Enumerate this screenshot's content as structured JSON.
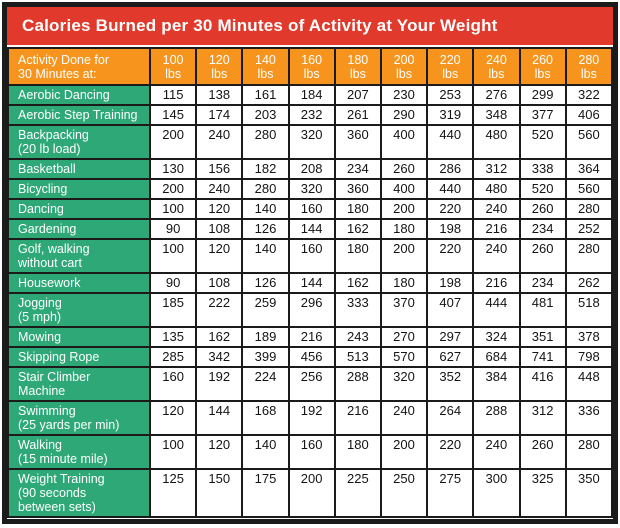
{
  "chart_data": {
    "type": "table",
    "title": "Calories Burned per 30 Minutes of Activity at Your Weight",
    "corner_header": "Activity Done for\n30 Minutes at:",
    "columns": [
      "100\nlbs",
      "120\nlbs",
      "140\nlbs",
      "160\nlbs",
      "180\nlbs",
      "200\nlbs",
      "220\nlbs",
      "240\nlbs",
      "260\nlbs",
      "280\nlbs"
    ],
    "rows": [
      {
        "activity": "Aerobic Dancing",
        "values": [
          115,
          138,
          161,
          184,
          207,
          230,
          253,
          276,
          299,
          322
        ]
      },
      {
        "activity": "Aerobic Step Training",
        "values": [
          145,
          174,
          203,
          232,
          261,
          290,
          319,
          348,
          377,
          406
        ]
      },
      {
        "activity": "Backpacking\n(20 lb load)",
        "values": [
          200,
          240,
          280,
          320,
          360,
          400,
          440,
          480,
          520,
          560
        ]
      },
      {
        "activity": "Basketball",
        "values": [
          130,
          156,
          182,
          208,
          234,
          260,
          286,
          312,
          338,
          364
        ]
      },
      {
        "activity": "Bicycling",
        "values": [
          200,
          240,
          280,
          320,
          360,
          400,
          440,
          480,
          520,
          560
        ]
      },
      {
        "activity": "Dancing",
        "values": [
          100,
          120,
          140,
          160,
          180,
          200,
          220,
          240,
          260,
          280
        ]
      },
      {
        "activity": "Gardening",
        "values": [
          90,
          108,
          126,
          144,
          162,
          180,
          198,
          216,
          234,
          252
        ]
      },
      {
        "activity": "Golf, walking\nwithout cart",
        "values": [
          100,
          120,
          140,
          160,
          180,
          200,
          220,
          240,
          260,
          280
        ]
      },
      {
        "activity": "Housework",
        "values": [
          90,
          108,
          126,
          144,
          162,
          180,
          198,
          216,
          234,
          262
        ]
      },
      {
        "activity": "Jogging\n(5 mph)",
        "values": [
          185,
          222,
          259,
          296,
          333,
          370,
          407,
          444,
          481,
          518
        ]
      },
      {
        "activity": "Mowing",
        "values": [
          135,
          162,
          189,
          216,
          243,
          270,
          297,
          324,
          351,
          378
        ]
      },
      {
        "activity": "Skipping Rope",
        "values": [
          285,
          342,
          399,
          456,
          513,
          570,
          627,
          684,
          741,
          798
        ]
      },
      {
        "activity": "Stair Climber\nMachine",
        "values": [
          160,
          192,
          224,
          256,
          288,
          320,
          352,
          384,
          416,
          448
        ]
      },
      {
        "activity": "Swimming\n(25 yards per min)",
        "values": [
          120,
          144,
          168,
          192,
          216,
          240,
          264,
          288,
          312,
          336
        ]
      },
      {
        "activity": "Walking\n(15 minute mile)",
        "values": [
          100,
          120,
          140,
          160,
          180,
          200,
          220,
          240,
          260,
          280
        ]
      },
      {
        "activity": "Weight Training\n(90 seconds\nbetween sets)",
        "values": [
          125,
          150,
          175,
          200,
          225,
          250,
          275,
          300,
          325,
          350
        ]
      }
    ],
    "layout": {
      "legend": "none",
      "grid": true,
      "header_position": "top-and-left"
    }
  },
  "colors": {
    "title_bg": "#e1392b",
    "header_bg": "#f7941e",
    "activity_bg": "#2fa878",
    "cell_bg": "#ffffff",
    "header_text": "#ffffff",
    "cell_text": "#141414",
    "border": "#1b1b1b"
  }
}
